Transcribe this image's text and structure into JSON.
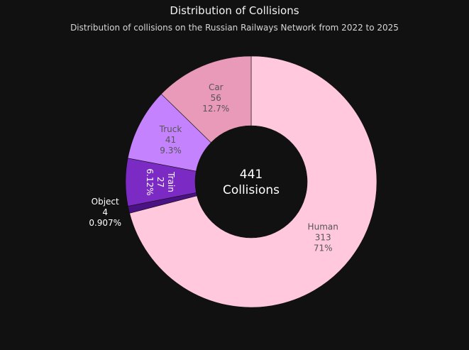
{
  "chart_data": {
    "type": "pie",
    "donut": true,
    "title": "Distribution of Collisions",
    "subtitle": "Distribution of collisions on the Russian Railways Network from 2022 to 2025",
    "center_label": {
      "value": "441",
      "text": "Collisions"
    },
    "total": 441,
    "slices": [
      {
        "label": "Human",
        "value": 313,
        "percent": "71%",
        "color": "#ffc8dc",
        "text_color": "#555555"
      },
      {
        "label": "Object",
        "value": 4,
        "percent": "0.907%",
        "color": "#4a1285",
        "text_color": "#ffffff",
        "label_outside": true
      },
      {
        "label": "Train",
        "value": 27,
        "percent": "6.12%",
        "color": "#7b2ac4",
        "text_color": "#ffffff",
        "label_rotated": true
      },
      {
        "label": "Truck",
        "value": 41,
        "percent": "9.3%",
        "color": "#c582ff",
        "text_color": "#555555"
      },
      {
        "label": "Car",
        "value": 56,
        "percent": "12.7%",
        "color": "#ea9ab9",
        "text_color": "#555555"
      }
    ],
    "background": "#111111"
  }
}
